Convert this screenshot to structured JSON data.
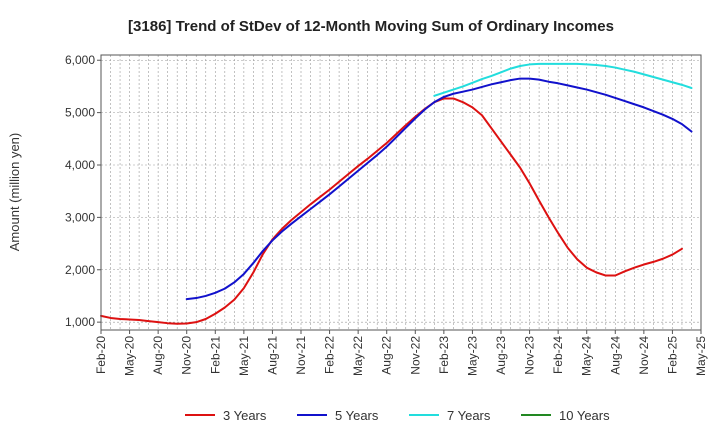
{
  "chart_data": {
    "type": "line",
    "title": "[3186]  Trend of StDev of 12-Month Moving Sum of Ordinary Incomes",
    "xlabel": "",
    "ylabel": "Amount (million yen)",
    "ylim": [
      850,
      6100
    ],
    "yticks": [
      1000,
      2000,
      3000,
      4000,
      5000,
      6000
    ],
    "ytick_labels": [
      "1,000",
      "2,000",
      "3,000",
      "4,000",
      "5,000",
      "6,000"
    ],
    "x_start": "Feb-20",
    "x_end": "May-25",
    "xtick_labels": [
      "Feb-20",
      "May-20",
      "Aug-20",
      "Nov-20",
      "Feb-21",
      "May-21",
      "Aug-21",
      "Nov-21",
      "Feb-22",
      "May-22",
      "Aug-22",
      "Nov-22",
      "Feb-23",
      "May-23",
      "Aug-23",
      "Nov-23",
      "Feb-24",
      "May-24",
      "Aug-24",
      "Nov-24",
      "Feb-25",
      "May-25"
    ],
    "grid": true,
    "legend_position": "bottom",
    "series": [
      {
        "name": "3 Years",
        "color": "#dd1111",
        "start_index": 0,
        "values": [
          1120,
          1080,
          1060,
          1050,
          1040,
          1020,
          1000,
          980,
          970,
          975,
          1000,
          1060,
          1160,
          1280,
          1430,
          1650,
          1950,
          2300,
          2580,
          2780,
          2950,
          3100,
          3250,
          3390,
          3530,
          3680,
          3830,
          3980,
          4120,
          4270,
          4420,
          4590,
          4760,
          4920,
          5070,
          5200,
          5270,
          5270,
          5200,
          5100,
          4950,
          4700,
          4450,
          4200,
          3950,
          3650,
          3320,
          3000,
          2700,
          2420,
          2200,
          2040,
          1950,
          1890,
          1890,
          1970,
          2040,
          2100,
          2150,
          2210,
          2290,
          2400
        ]
      },
      {
        "name": "5 Years",
        "color": "#1111cc",
        "start_index": 9,
        "values": [
          1440,
          1460,
          1500,
          1560,
          1640,
          1760,
          1920,
          2130,
          2360,
          2560,
          2730,
          2880,
          3020,
          3160,
          3300,
          3440,
          3590,
          3740,
          3890,
          4040,
          4190,
          4350,
          4530,
          4710,
          4890,
          5060,
          5200,
          5300,
          5360,
          5400,
          5440,
          5490,
          5540,
          5580,
          5620,
          5650,
          5650,
          5630,
          5590,
          5560,
          5520,
          5480,
          5440,
          5390,
          5340,
          5280,
          5220,
          5160,
          5100,
          5030,
          4960,
          4880,
          4780,
          4640
        ]
      },
      {
        "name": "7 Years",
        "color": "#22dddd",
        "start_index": 35,
        "values": [
          5320,
          5380,
          5440,
          5500,
          5570,
          5640,
          5700,
          5770,
          5840,
          5890,
          5920,
          5930,
          5930,
          5930,
          5930,
          5930,
          5920,
          5910,
          5890,
          5860,
          5820,
          5780,
          5730,
          5680,
          5630,
          5580,
          5530,
          5470
        ]
      },
      {
        "name": "10 Years",
        "color": "#228822",
        "start_index": 0,
        "values": []
      }
    ]
  }
}
